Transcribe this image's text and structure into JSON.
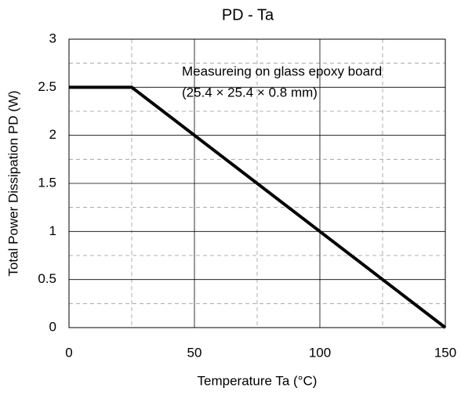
{
  "chart_data": {
    "type": "line",
    "title": "PD - Ta",
    "x_label": "Temperature Ta (°C)",
    "y_label": "Total Power Dissipation PD (W)",
    "annotations": [
      "Measureing on glass epoxy board",
      "(25.4 × 25.4 × 0.8 mm)"
    ],
    "x": [
      0,
      25,
      150
    ],
    "series": [
      {
        "name": "PD",
        "color": "#000000",
        "values": [
          2.5,
          2.5,
          0
        ]
      }
    ],
    "xlim": [
      0,
      150
    ],
    "ylim": [
      0,
      3
    ],
    "xticks": [
      0,
      50,
      100,
      150
    ],
    "yticks": [
      0,
      0.5,
      1,
      1.5,
      2,
      2.5,
      3
    ],
    "minor_xticks": [
      25,
      75,
      125
    ],
    "minor_yticks": [
      0.25,
      0.75,
      1.25,
      1.75,
      2.25,
      2.75
    ],
    "grid": true
  }
}
